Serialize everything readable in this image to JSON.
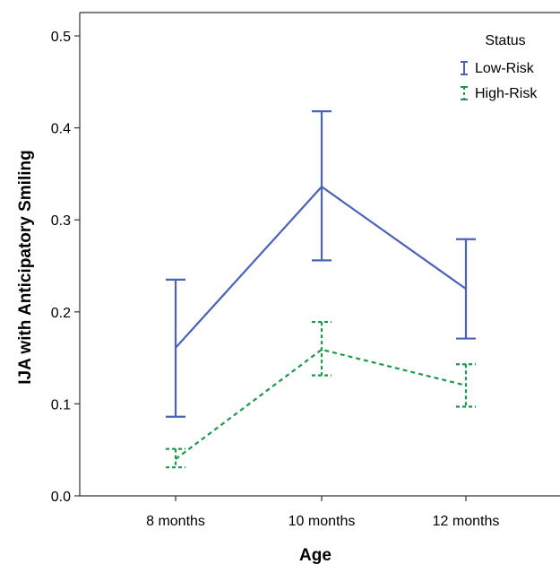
{
  "chart_data": {
    "type": "line",
    "title": "",
    "xlabel": "Age",
    "ylabel": "IJA with Anticipatory Smiling",
    "categories": [
      "8 months",
      "10 months",
      "12 months"
    ],
    "ylim": [
      0.0,
      0.5
    ],
    "yticks": [
      "0.0",
      "0.1",
      "0.2",
      "0.3",
      "0.4",
      "0.5"
    ],
    "yticks_values": [
      0.0,
      0.1,
      0.2,
      0.3,
      0.4,
      0.5
    ],
    "grid": false,
    "legend": {
      "title": "Status",
      "position": "top-right"
    },
    "series": [
      {
        "name": "Low-Risk",
        "color": "#4a62b8",
        "dashed": false,
        "values": [
          0.161,
          0.336,
          0.225
        ],
        "error_low": [
          0.086,
          0.256,
          0.171
        ],
        "error_high": [
          0.235,
          0.418,
          0.279
        ]
      },
      {
        "name": "High-Risk",
        "color": "#1a9a4a",
        "dashed": true,
        "values": [
          0.04,
          0.159,
          0.12
        ],
        "error_low": [
          0.031,
          0.131,
          0.097
        ],
        "error_high": [
          0.051,
          0.189,
          0.143
        ]
      }
    ]
  }
}
